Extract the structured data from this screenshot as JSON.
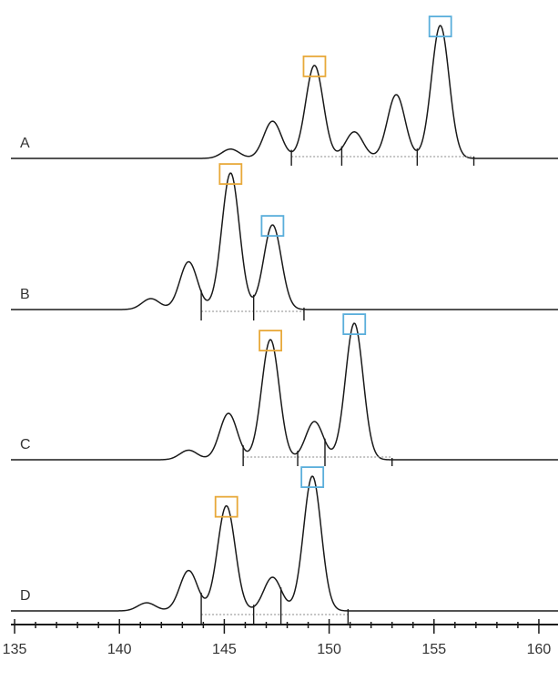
{
  "chart_data": {
    "type": "line",
    "title": "",
    "xlabel": "",
    "ylabel": "",
    "xlim": [
      134,
      161
    ],
    "x_ticks": [
      135,
      140,
      145,
      150,
      155,
      160
    ],
    "grid": false,
    "legend": "none",
    "colors": {
      "trace": "#1a1a1a",
      "marker_orange": "#e8a93a",
      "marker_blue": "#5aaedb",
      "baseline": "#8a8a8a"
    },
    "panels": [
      {
        "label": "A",
        "peaks": [
          {
            "x": 145.3,
            "h": 0.07
          },
          {
            "x": 147.3,
            "h": 0.28
          },
          {
            "x": 149.3,
            "h": 0.7,
            "marker": "orange"
          },
          {
            "x": 151.2,
            "h": 0.2
          },
          {
            "x": 153.2,
            "h": 0.48
          },
          {
            "x": 155.3,
            "h": 1.0,
            "marker": "blue"
          }
        ],
        "dividers": [
          148.2,
          150.6,
          154.2,
          156.9
        ]
      },
      {
        "label": "B",
        "peaks": [
          {
            "x": 141.5,
            "h": 0.08
          },
          {
            "x": 143.3,
            "h": 0.35
          },
          {
            "x": 145.3,
            "h": 1.0,
            "marker": "orange"
          },
          {
            "x": 147.3,
            "h": 0.62,
            "marker": "blue"
          }
        ],
        "dividers": [
          143.9,
          146.4,
          148.8
        ]
      },
      {
        "label": "C",
        "peaks": [
          {
            "x": 143.3,
            "h": 0.07
          },
          {
            "x": 145.2,
            "h": 0.34
          },
          {
            "x": 147.2,
            "h": 0.88,
            "marker": "orange"
          },
          {
            "x": 149.3,
            "h": 0.28
          },
          {
            "x": 151.2,
            "h": 1.0,
            "marker": "blue"
          }
        ],
        "dividers": [
          145.9,
          148.5,
          149.8,
          153.0
        ]
      },
      {
        "label": "D",
        "peaks": [
          {
            "x": 141.3,
            "h": 0.06
          },
          {
            "x": 143.3,
            "h": 0.3
          },
          {
            "x": 145.1,
            "h": 0.78,
            "marker": "orange"
          },
          {
            "x": 147.3,
            "h": 0.25
          },
          {
            "x": 149.2,
            "h": 1.0,
            "marker": "blue"
          }
        ],
        "dividers": [
          143.9,
          146.4,
          147.7,
          150.9
        ]
      }
    ]
  }
}
